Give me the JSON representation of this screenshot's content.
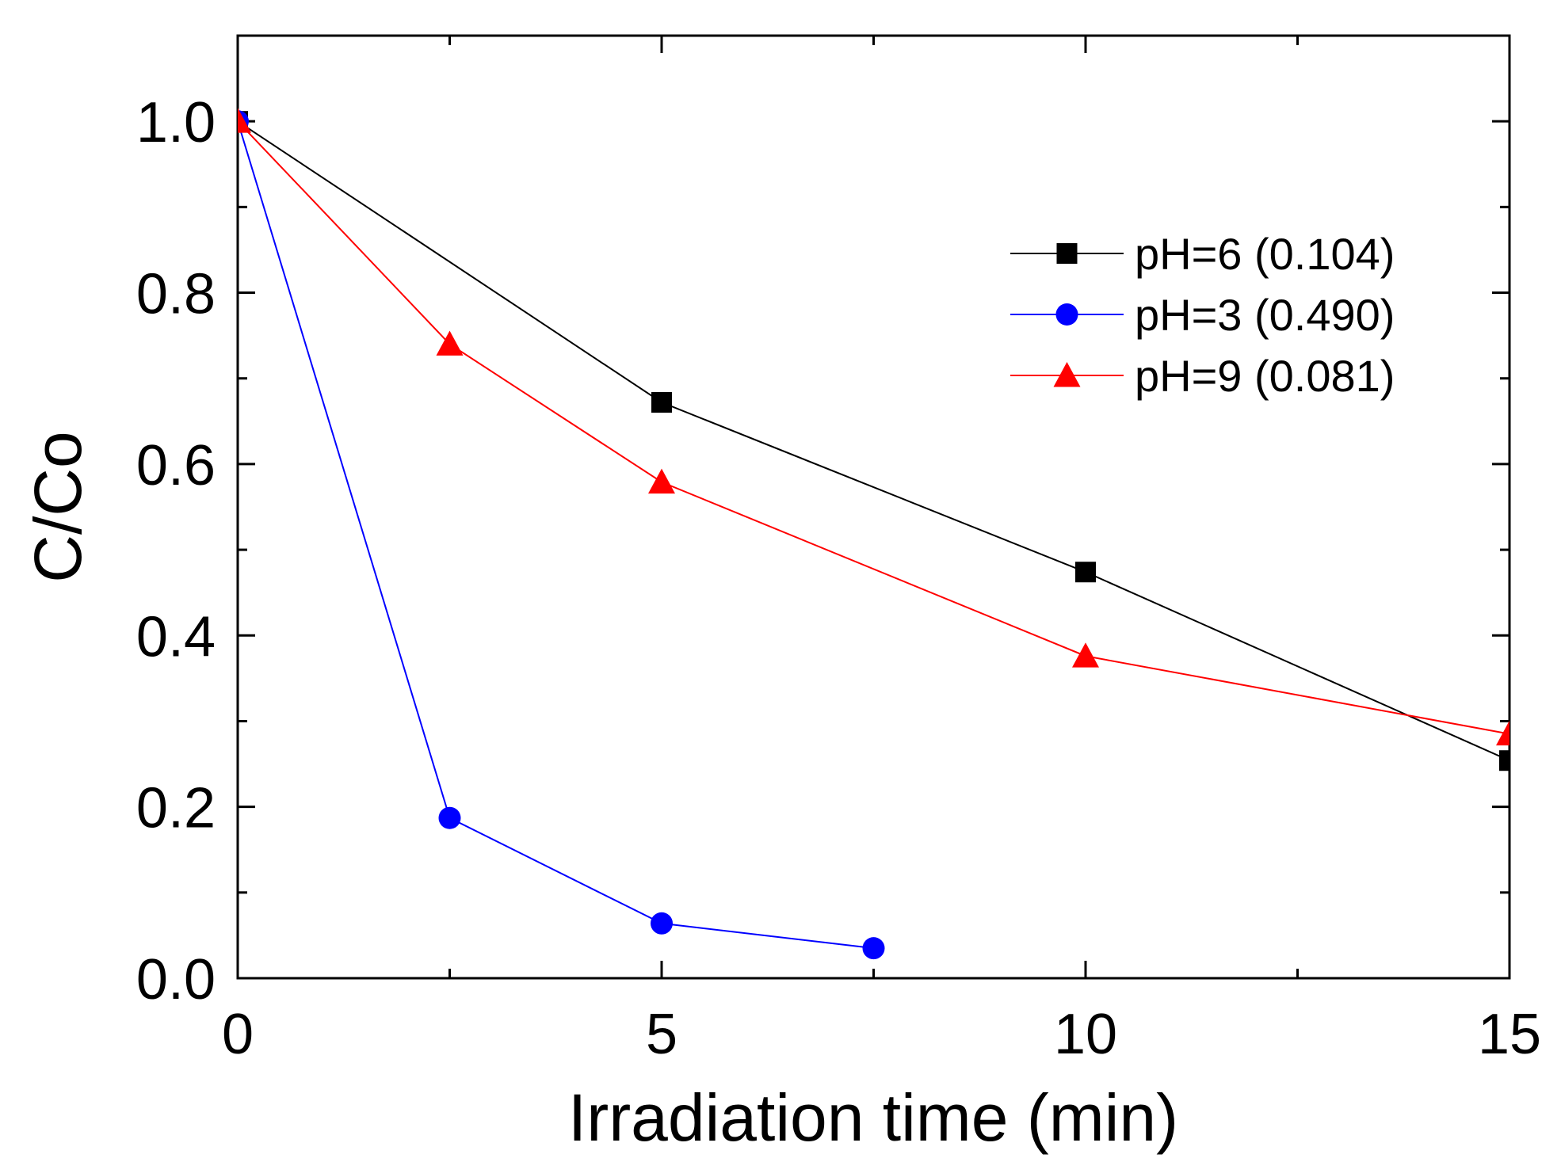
{
  "chart_data": {
    "type": "line",
    "title": "",
    "xlabel": "Irradiation time (min)",
    "ylabel": "C/Co",
    "xlim": [
      0,
      15
    ],
    "ylim": [
      0,
      1.1
    ],
    "x_ticks": [
      0,
      5,
      10,
      15
    ],
    "x_tick_labels": [
      "0",
      "5",
      "10",
      "15"
    ],
    "y_ticks": [
      0.0,
      0.2,
      0.4,
      0.6,
      0.8,
      1.0
    ],
    "y_tick_labels": [
      "0.0",
      "0.2",
      "0.4",
      "0.6",
      "0.8",
      "1.0"
    ],
    "grid": false,
    "legend_position": "top-right",
    "series": [
      {
        "name": "pH=6 (0.104)",
        "color": "#000000",
        "marker": "square",
        "x": [
          0,
          5,
          10,
          15
        ],
        "y": [
          1.0,
          0.672,
          0.474,
          0.254
        ]
      },
      {
        "name": "pH=3 (0.490)",
        "color": "#0000ff",
        "marker": "circle",
        "x": [
          0,
          2.5,
          5,
          7.5
        ],
        "y": [
          1.0,
          0.187,
          0.064,
          0.035
        ]
      },
      {
        "name": "pH=9 (0.081)",
        "color": "#ff0000",
        "marker": "triangle",
        "x": [
          0,
          2.5,
          5,
          10,
          15
        ],
        "y": [
          1.0,
          0.74,
          0.579,
          0.376,
          0.285
        ]
      }
    ]
  }
}
